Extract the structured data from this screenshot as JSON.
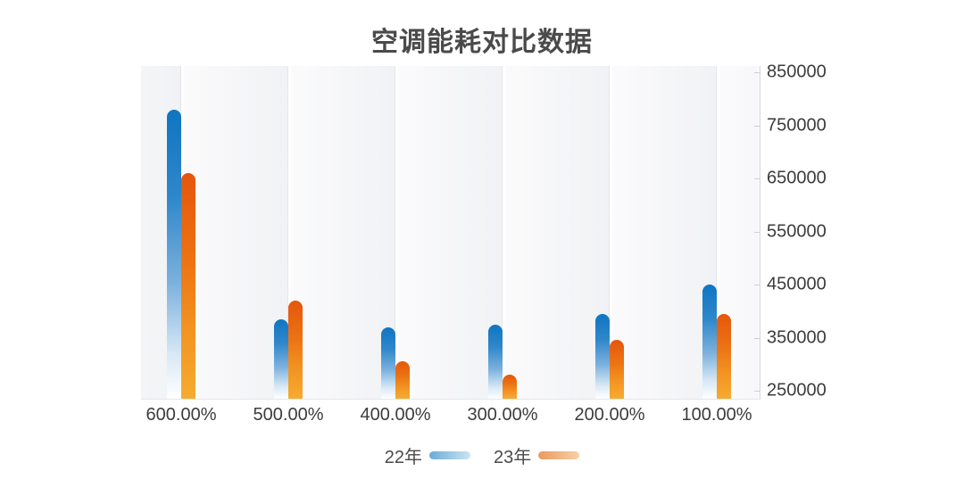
{
  "title": "空调能耗对比数据",
  "chart_data": {
    "type": "bar",
    "title": "空调能耗对比数据",
    "categories": [
      "600.00%",
      "500.00%",
      "400.00%",
      "300.00%",
      "200.00%",
      "100.00%"
    ],
    "series": [
      {
        "name": "22年",
        "color": "#0f75c2",
        "gradient": [
          "#0f75c2",
          "#ffffff"
        ],
        "values": [
          780000,
          385000,
          370000,
          375000,
          395000,
          450000
        ]
      },
      {
        "name": "23年",
        "color": "#e5560c",
        "gradient": [
          "#e5560c",
          "#f6ab30"
        ],
        "values": [
          660000,
          420000,
          305000,
          280000,
          345000,
          395000
        ]
      }
    ],
    "xlabel": "",
    "ylabel": "",
    "ylim": [
      250000,
      850000
    ],
    "yticks": [
      250000,
      350000,
      450000,
      550000,
      650000,
      750000,
      850000
    ],
    "ytick_labels": [
      "250000",
      "350000",
      "450000",
      "550000",
      "650000",
      "750000",
      "850000"
    ],
    "y_axis_side": "right",
    "grid": "vertical-bands",
    "legend_position": "bottom"
  },
  "legend": {
    "items": [
      {
        "label": "22年",
        "swatch_from": "#6aabd8",
        "swatch_to": "#cde4f4"
      },
      {
        "label": "23年",
        "swatch_from": "#e99a60",
        "swatch_to": "#f7d0a6"
      }
    ]
  }
}
